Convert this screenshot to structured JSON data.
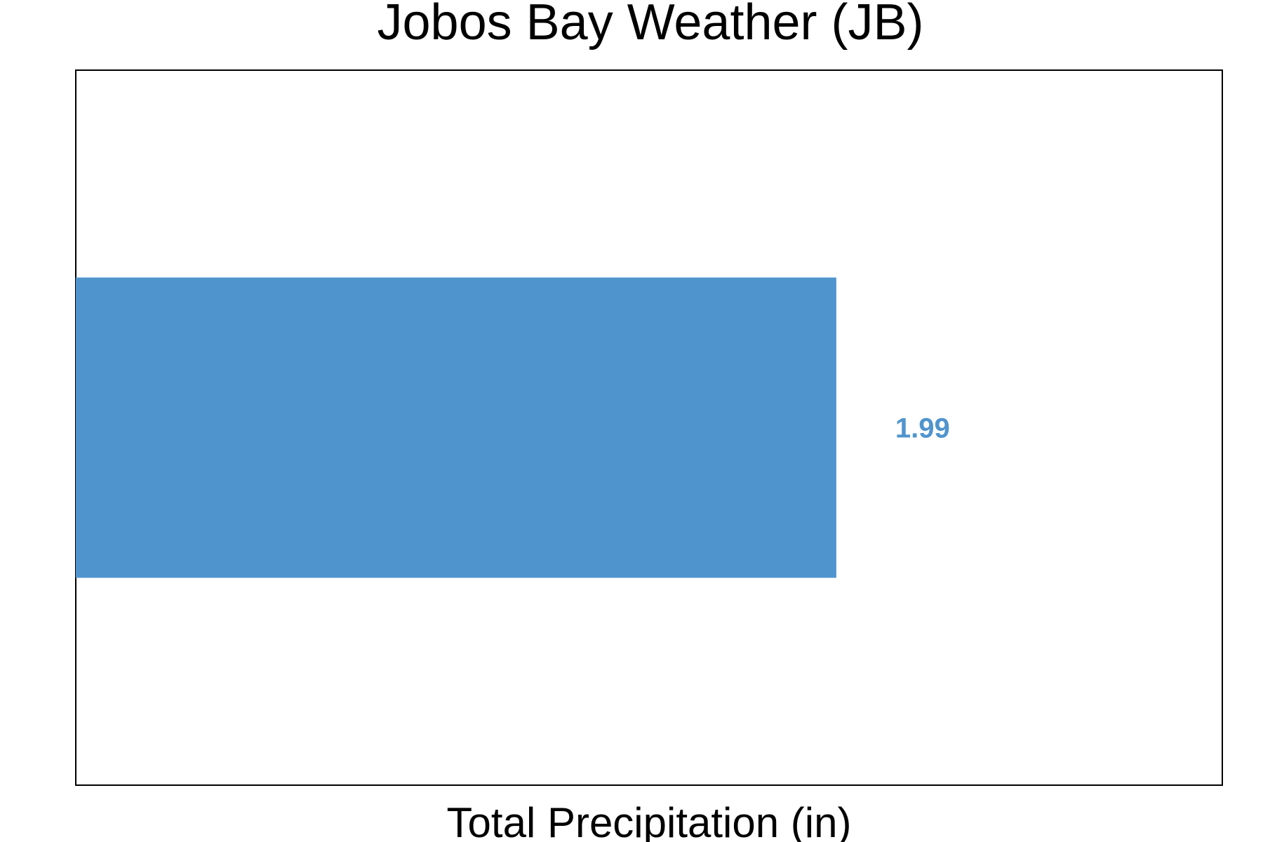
{
  "chart_data": {
    "type": "bar",
    "orientation": "horizontal",
    "title": "Jobos Bay Weather (JB)",
    "xlabel": "Total Precipitation (in)",
    "ylabel": "",
    "categories": [
      ""
    ],
    "values": [
      1.99
    ],
    "data_labels": [
      "1.99"
    ],
    "xlim": [
      0,
      3.0
    ],
    "grid": false,
    "legend": "none",
    "colors": {
      "bar": "#5094CE",
      "label": "#5094CE",
      "frame": "#000000"
    }
  }
}
